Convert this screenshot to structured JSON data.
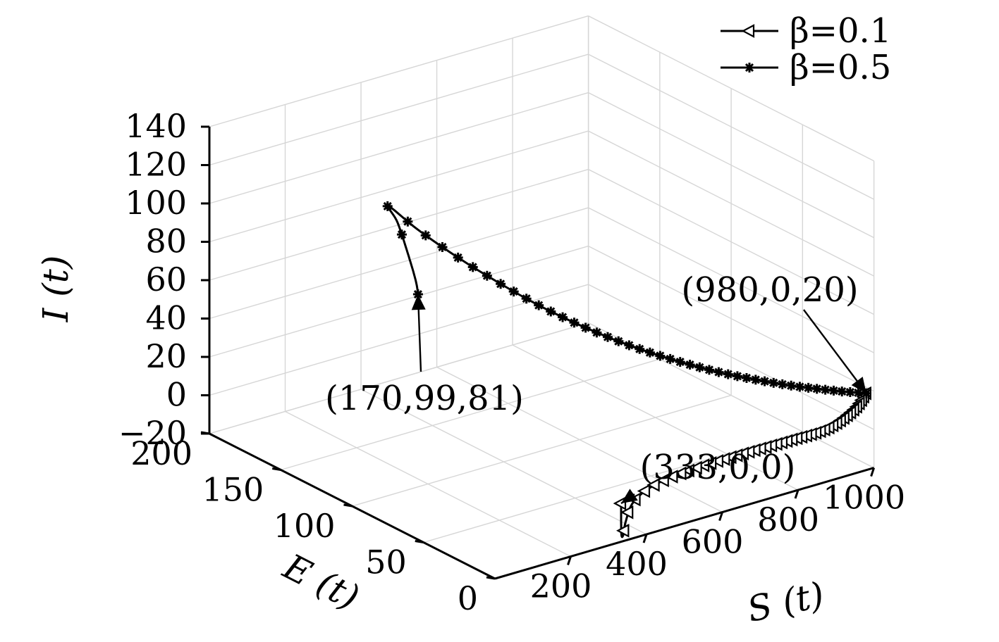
{
  "chart_data": {
    "type": "line",
    "projection": "3d",
    "grid": true,
    "legend_position": "top-right",
    "axes": {
      "x": {
        "label": "S (t)",
        "lim": [
          0,
          1000
        ],
        "ticks": [
          "200",
          "400",
          "600",
          "800",
          "1000"
        ]
      },
      "y": {
        "label": "E (t)",
        "lim": [
          0,
          200
        ],
        "ticks": [
          "0",
          "50",
          "100",
          "150",
          "200"
        ]
      },
      "z": {
        "label": "I (t)",
        "lim": [
          -20,
          140
        ],
        "ticks": [
          "−20",
          "0",
          "20",
          "40",
          "60",
          "80",
          "100",
          "120",
          "140"
        ]
      }
    },
    "series": [
      {
        "name": "β=0.1",
        "marker": "triangle-left",
        "points": [
          [
            980,
            0,
            20
          ],
          [
            955,
            2,
            12
          ],
          [
            900,
            6,
            4
          ],
          [
            820,
            12,
            0
          ],
          [
            720,
            19,
            -4
          ],
          [
            620,
            25,
            -8
          ],
          [
            530,
            28,
            -12
          ],
          [
            460,
            25,
            -16
          ],
          [
            405,
            16,
            -20
          ],
          [
            370,
            8,
            -21
          ],
          [
            345,
            3,
            -18
          ],
          [
            333,
            0,
            0
          ]
        ]
      },
      {
        "name": "β=0.5",
        "marker": "asterisk",
        "points": [
          [
            980,
            0,
            20
          ],
          [
            900,
            3,
            25
          ],
          [
            780,
            10,
            33
          ],
          [
            640,
            22,
            44
          ],
          [
            500,
            40,
            58
          ],
          [
            380,
            62,
            74
          ],
          [
            280,
            86,
            92
          ],
          [
            215,
            108,
            107
          ],
          [
            190,
            125,
            116
          ],
          [
            188,
            118,
            110
          ],
          [
            182,
            108,
            95
          ],
          [
            176,
            102,
            86
          ],
          [
            170,
            99,
            81
          ]
        ]
      }
    ],
    "annotations": [
      {
        "text": "(980,0,20)",
        "point": [
          980,
          0,
          20
        ]
      },
      {
        "text": "(170,99,81)",
        "point": [
          170,
          99,
          81
        ]
      },
      {
        "text": "(333,0,0)",
        "point": [
          333,
          0,
          0
        ]
      }
    ]
  }
}
